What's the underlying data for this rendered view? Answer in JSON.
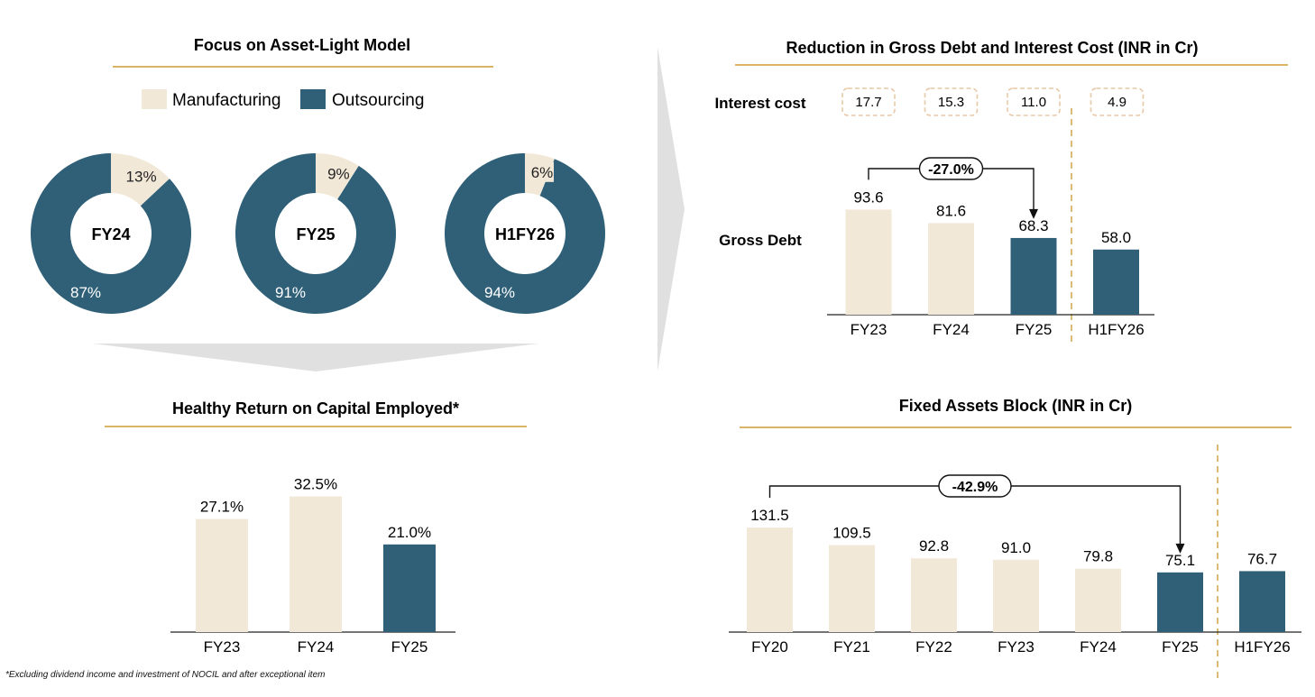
{
  "colors": {
    "manufacturing": "#F2E8D8",
    "outsourcing": "#2F6078",
    "accent": "#D9B565",
    "arrow": "#E0E0E0"
  },
  "chart_data": [
    {
      "type": "pie",
      "title": "Focus on Asset-Light Model",
      "legend": [
        {
          "label": "Manufacturing",
          "key": "manufacturing"
        },
        {
          "label": "Outsourcing",
          "key": "outsourcing"
        }
      ],
      "donuts": [
        {
          "label": "FY24",
          "manufacturing": 13,
          "outsourcing": 87,
          "manufacturing_label": "13%",
          "outsourcing_label": "87%"
        },
        {
          "label": "FY25",
          "manufacturing": 9,
          "outsourcing": 91,
          "manufacturing_label": "9%",
          "outsourcing_label": "91%"
        },
        {
          "label": "H1FY26",
          "manufacturing": 6,
          "outsourcing": 94,
          "manufacturing_label": "6%",
          "outsourcing_label": "94%"
        }
      ]
    },
    {
      "type": "bar",
      "title": "Reduction in Gross Debt and Interest Cost (INR in Cr)",
      "categories": [
        "FY23",
        "FY24",
        "FY25",
        "H1FY26"
      ],
      "row_labels": {
        "interest": "Interest cost",
        "debt": "Gross Debt"
      },
      "interest_cost": [
        "17.7",
        "15.3",
        "11.0",
        "4.9"
      ],
      "values": [
        93.6,
        81.6,
        68.3,
        58.0
      ],
      "labels": [
        "93.6",
        "81.6",
        "68.3",
        "58.0"
      ],
      "highlight": [
        false,
        false,
        true,
        true
      ],
      "change_label": "-27.0%",
      "ylim": [
        0,
        110
      ]
    },
    {
      "type": "bar",
      "title": "Healthy Return on Capital Employed*",
      "categories": [
        "FY23",
        "FY24",
        "FY25"
      ],
      "values": [
        27.1,
        32.5,
        21.0
      ],
      "labels": [
        "27.1%",
        "32.5%",
        "21.0%"
      ],
      "highlight": [
        false,
        false,
        true
      ],
      "ylim": [
        0,
        35
      ]
    },
    {
      "type": "bar",
      "title": "Fixed Assets Block (INR in Cr)",
      "categories": [
        "FY20",
        "FY21",
        "FY22",
        "FY23",
        "FY24",
        "FY25",
        "H1FY26"
      ],
      "values": [
        131.5,
        109.5,
        92.8,
        91.0,
        79.8,
        75.1,
        76.7
      ],
      "labels": [
        "131.5",
        "109.5",
        "92.8",
        "91.0",
        "79.8",
        "75.1",
        "76.7"
      ],
      "highlight": [
        false,
        false,
        false,
        false,
        false,
        true,
        true
      ],
      "change_label": "-42.9%",
      "ylim": [
        0,
        160
      ]
    }
  ],
  "footnote": "*Excluding dividend income and investment of NOCIL and after exceptional item"
}
